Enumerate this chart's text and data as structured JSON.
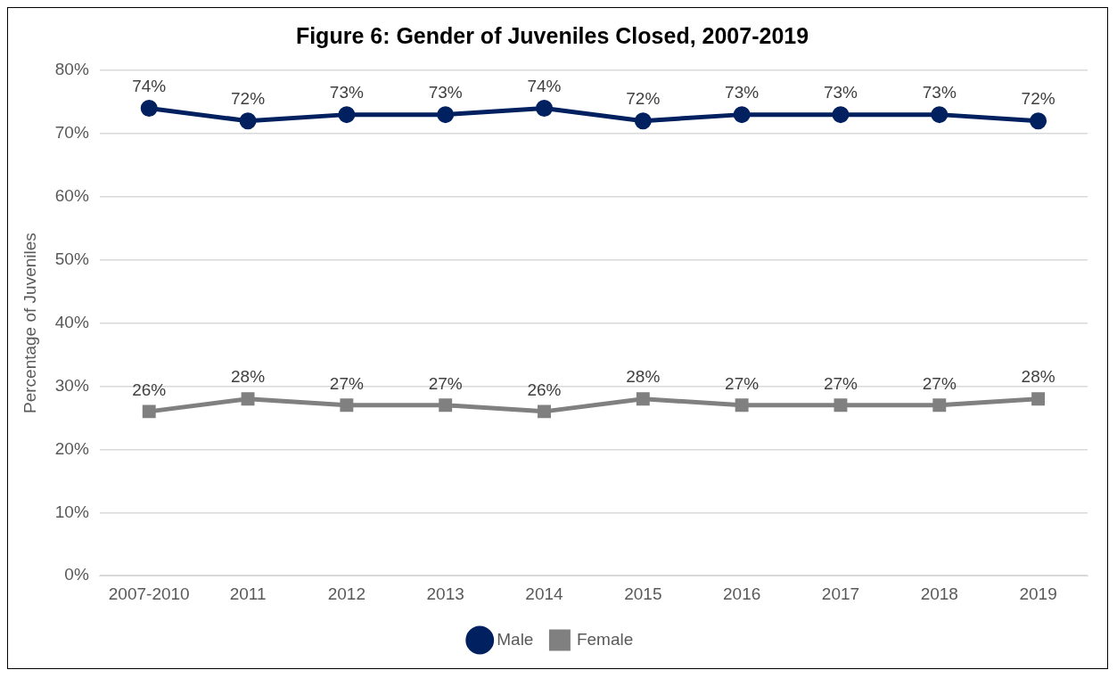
{
  "chart_data": {
    "type": "line",
    "title": "Figure 6: Gender of Juveniles Closed, 2007-2019",
    "ylabel": "Percentage of Juveniles",
    "categories": [
      "2007-2010",
      "2011",
      "2012",
      "2013",
      "2014",
      "2015",
      "2016",
      "2017",
      "2018",
      "2019"
    ],
    "series": [
      {
        "name": "Male",
        "color": "#002060",
        "marker": "circle",
        "values": [
          74,
          72,
          73,
          73,
          74,
          72,
          73,
          73,
          73,
          72
        ],
        "value_labels": [
          "74%",
          "72%",
          "73%",
          "73%",
          "74%",
          "72%",
          "73%",
          "73%",
          "73%",
          "72%"
        ]
      },
      {
        "name": "Female",
        "color": "#808080",
        "marker": "square",
        "values": [
          26,
          28,
          27,
          27,
          26,
          28,
          27,
          27,
          27,
          28
        ],
        "value_labels": [
          "26%",
          "28%",
          "27%",
          "27%",
          "26%",
          "28%",
          "27%",
          "27%",
          "27%",
          "28%"
        ]
      }
    ],
    "ylim": [
      0,
      80
    ],
    "yticks": [
      {
        "value": 0,
        "label": "0%"
      },
      {
        "value": 10,
        "label": "10%"
      },
      {
        "value": 20,
        "label": "20%"
      },
      {
        "value": 30,
        "label": "30%"
      },
      {
        "value": 40,
        "label": "40%"
      },
      {
        "value": 50,
        "label": "50%"
      },
      {
        "value": 60,
        "label": "60%"
      },
      {
        "value": 70,
        "label": "70%"
      },
      {
        "value": 80,
        "label": "80%"
      }
    ],
    "grid": "y",
    "legend": "bottom",
    "line_style": "solid"
  }
}
